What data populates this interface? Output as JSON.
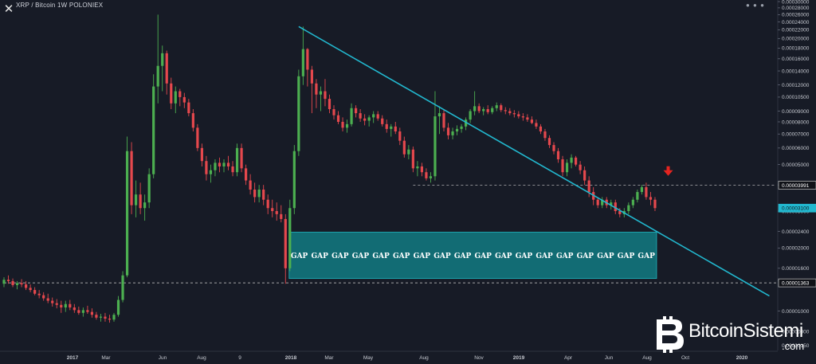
{
  "header": {
    "close_icon": "close-icon",
    "title": "XRP / Bitcoin   1W   POLONIEX",
    "dots": "● ● ●"
  },
  "watermark": {
    "brand": "BitcoinSistemi",
    "suffix": ".com",
    "logo_icon": "bitcoin-logo-icon"
  },
  "chart_data": {
    "type": "candlestick",
    "title": "XRP / Bitcoin 1W POLONIEX",
    "colors": {
      "background": "#171b26",
      "up": "#4caf50",
      "down": "#e5484d",
      "trendline": "#22b8cf",
      "gap_zone": "#127a82",
      "arrow": "#e52420",
      "dashed": "#d0d0d0"
    },
    "y_axis": {
      "scale": "log",
      "ticks": [
        "0.00030000",
        "0.00028000",
        "0.00026000",
        "0.00024000",
        "0.00022000",
        "0.00020000",
        "0.00018000",
        "0.00016000",
        "0.00014000",
        "0.00012000",
        "0.00010500",
        "0.00009000",
        "0.00008000",
        "0.00007000",
        "0.00006000",
        "0.00005000",
        "0.00004000",
        "0.00003000",
        "0.00002400",
        "0.00002000",
        "0.00001600",
        "0.00001400",
        "0.00001000",
        "0.00000800"
      ],
      "tick_values": [
        0.0003,
        0.00028,
        0.00026,
        0.00024,
        0.00022,
        0.0002,
        0.00018,
        0.00016,
        0.00014,
        0.00012,
        0.000105,
        9e-05,
        8e-05,
        7e-05,
        6e-05,
        5e-05,
        4e-05,
        3e-05,
        2.4e-05,
        2e-05,
        1.6e-05,
        1.4e-05,
        1e-05,
        8e-06
      ],
      "bottom_label": "0.00000150",
      "level_labels": [
        {
          "text": "0.00003991",
          "value": 3.991e-05,
          "style": "dark"
        },
        {
          "text": "0.00003100",
          "value": 3.1e-05,
          "style": "cyan"
        },
        {
          "text": "0.00001363",
          "value": 1.363e-05,
          "style": "dark"
        }
      ]
    },
    "x_axis": {
      "labels": [
        {
          "text": "2017",
          "bold": true
        },
        {
          "text": "Mar",
          "bold": false
        },
        {
          "text": "Jun",
          "bold": false
        },
        {
          "text": "Aug",
          "bold": false
        },
        {
          "text": "9",
          "bold": false
        },
        {
          "text": "2018",
          "bold": true
        },
        {
          "text": "Mar",
          "bold": false
        },
        {
          "text": "May",
          "bold": false
        },
        {
          "text": "Aug",
          "bold": false
        },
        {
          "text": "Nov",
          "bold": false
        },
        {
          "text": "2019",
          "bold": true
        },
        {
          "text": "Apr",
          "bold": false
        },
        {
          "text": "Jun",
          "bold": false
        },
        {
          "text": "Aug",
          "bold": false
        },
        {
          "text": "Oct",
          "bold": false
        },
        {
          "text": "2020",
          "bold": true
        }
      ]
    },
    "candles": [
      [
        1.35e-05,
        1.45e-05,
        1.3e-05,
        1.41e-05
      ],
      [
        1.41e-05,
        1.48e-05,
        1.35e-05,
        1.39e-05
      ],
      [
        1.39e-05,
        1.43e-05,
        1.3e-05,
        1.33e-05
      ],
      [
        1.33e-05,
        1.39e-05,
        1.27e-05,
        1.36e-05
      ],
      [
        1.36e-05,
        1.42e-05,
        1.3e-05,
        1.34e-05
      ],
      [
        1.34e-05,
        1.39e-05,
        1.26e-05,
        1.29e-05
      ],
      [
        1.29e-05,
        1.34e-05,
        1.23e-05,
        1.26e-05
      ],
      [
        1.26e-05,
        1.3e-05,
        1.19e-05,
        1.21e-05
      ],
      [
        1.21e-05,
        1.26e-05,
        1.15e-05,
        1.19e-05
      ],
      [
        1.19e-05,
        1.23e-05,
        1.12e-05,
        1.15e-05
      ],
      [
        1.15e-05,
        1.21e-05,
        1.09e-05,
        1.12e-05
      ],
      [
        1.12e-05,
        1.16e-05,
        1.05e-05,
        1.09e-05
      ],
      [
        1.09e-05,
        1.14e-05,
        1.03e-05,
        1.07e-05
      ],
      [
        1.07e-05,
        1.12e-05,
        9.8e-06,
        1.04e-05
      ],
      [
        1.04e-05,
        1.12e-05,
        9.9e-06,
        1.08e-05
      ],
      [
        1.08e-05,
        1.13e-05,
        1.01e-05,
        1.04e-05
      ],
      [
        1.04e-05,
        1.08e-05,
        9.8e-06,
        1.01e-05
      ],
      [
        1.01e-05,
        1.05e-05,
        9.6e-06,
        9.8e-06
      ],
      [
        9.8e-06,
        1.04e-05,
        9.4e-06,
        1.01e-05
      ],
      [
        1.01e-05,
        1.06e-05,
        9.7e-06,
        9.9e-06
      ],
      [
        9.9e-06,
        1.03e-05,
        9.3e-06,
        9.6e-06
      ],
      [
        9.6e-06,
        9.9e-06,
        9.1e-06,
        9.3e-06
      ],
      [
        9.3e-06,
        9.7e-06,
        8.9e-06,
        9.4e-06
      ],
      [
        9.4e-06,
        9.8e-06,
        8.9e-06,
        9.2e-06
      ],
      [
        9.2e-06,
        9.6e-06,
        8.8e-06,
        9.1e-06
      ],
      [
        9.1e-06,
        9.8e-06,
        8.9e-06,
        9.6e-06
      ],
      [
        9.6e-06,
        1.18e-05,
        9.4e-06,
        1.13e-05
      ],
      [
        1.13e-05,
        1.55e-05,
        1.1e-05,
        1.48e-05
      ],
      [
        1.48e-05,
        6.8e-05,
        1.45e-05,
        5.8e-05
      ],
      [
        5.8e-05,
        6.4e-05,
        2.9e-05,
        3.2e-05
      ],
      [
        3.2e-05,
        4.2e-05,
        2.8e-05,
        3.6e-05
      ],
      [
        3.6e-05,
        4.1e-05,
        2.9e-05,
        3.1e-05
      ],
      [
        3.1e-05,
        3.6e-05,
        2.7e-05,
        3.3e-05
      ],
      [
        3.3e-05,
        4.8e-05,
        3.1e-05,
        4.5e-05
      ],
      [
        4.5e-05,
        0.000135,
        4.3e-05,
        0.000118
      ],
      [
        0.000118,
        0.00026,
        9.8e-05,
        0.000148
      ],
      [
        0.000148,
        0.000185,
        0.000112,
        0.00017
      ],
      [
        0.00017,
        0.000175,
        0.000108,
        0.000122
      ],
      [
        0.000122,
        0.00013,
        9.2e-05,
        9.8e-05
      ],
      [
        9.8e-05,
        0.000118,
        8.8e-05,
        0.000112
      ],
      [
        0.000112,
        0.000115,
        9.5e-05,
        0.000105
      ],
      [
        0.000105,
        0.00011,
        9.3e-05,
        9.9e-05
      ],
      [
        9.9e-05,
        0.000103,
        8.5e-05,
        8.8e-05
      ],
      [
        8.8e-05,
        9.2e-05,
        7.2e-05,
        7.5e-05
      ],
      [
        7.5e-05,
        7.8e-05,
        5.8e-05,
        6e-05
      ],
      [
        6e-05,
        6.3e-05,
        4.9e-05,
        5.2e-05
      ],
      [
        5.2e-05,
        5.5e-05,
        4.2e-05,
        4.5e-05
      ],
      [
        4.5e-05,
        5e-05,
        4.1e-05,
        4.7e-05
      ],
      [
        4.7e-05,
        5.3e-05,
        4.4e-05,
        5.1e-05
      ],
      [
        5.1e-05,
        5.4e-05,
        4.6e-05,
        4.9e-05
      ],
      [
        4.9e-05,
        5.3e-05,
        4.6e-05,
        5.1e-05
      ],
      [
        5.1e-05,
        5.5e-05,
        4.7e-05,
        4.9e-05
      ],
      [
        4.9e-05,
        5.2e-05,
        4.4e-05,
        4.6e-05
      ],
      [
        4.6e-05,
        6.3e-05,
        4.4e-05,
        6e-05
      ],
      [
        6e-05,
        6.3e-05,
        4.6e-05,
        4.8e-05
      ],
      [
        4.8e-05,
        5e-05,
        4e-05,
        4.2e-05
      ],
      [
        4.2e-05,
        4.5e-05,
        3.6e-05,
        3.8e-05
      ],
      [
        3.8e-05,
        4.1e-05,
        3.3e-05,
        3.5e-05
      ],
      [
        3.5e-05,
        4e-05,
        3.3e-05,
        3.8e-05
      ],
      [
        3.8e-05,
        4e-05,
        3.2e-05,
        3.4e-05
      ],
      [
        3.4e-05,
        3.6e-05,
        2.9e-05,
        3.1e-05
      ],
      [
        3.1e-05,
        3.4e-05,
        2.8e-05,
        3e-05
      ],
      [
        3e-05,
        3.3e-05,
        2.7e-05,
        2.9e-05
      ],
      [
        2.9e-05,
        3.2e-05,
        2.65e-05,
        2.75e-05
      ],
      [
        2.75e-05,
        2.9e-05,
        1.35e-05,
        1.6e-05
      ],
      [
        1.6e-05,
        3.4e-05,
        1.55e-05,
        3.1e-05
      ],
      [
        3.1e-05,
        6.2e-05,
        2.9e-05,
        5.8e-05
      ],
      [
        5.8e-05,
        0.000142,
        5.5e-05,
        0.000132
      ],
      [
        0.000132,
        0.000228,
        0.00012,
        0.000178
      ],
      [
        0.000178,
        0.00018,
        0.000118,
        0.000142
      ],
      [
        0.000142,
        0.000148,
        8.8e-05,
        0.000122
      ],
      [
        0.000122,
        0.000128,
        9.3e-05,
        0.000108
      ],
      [
        0.000108,
        0.000118,
        9e-05,
        0.000112
      ],
      [
        0.000112,
        0.000128,
        9.5e-05,
        0.000103
      ],
      [
        0.000103,
        0.000108,
        8.8e-05,
        9.2e-05
      ],
      [
        9.2e-05,
        9.6e-05,
        8.2e-05,
        8.6e-05
      ],
      [
        8.6e-05,
        9e-05,
        7.8e-05,
        8e-05
      ],
      [
        8e-05,
        8.4e-05,
        7.2e-05,
        7.5e-05
      ],
      [
        7.5e-05,
        8.2e-05,
        7.1e-05,
        7.8e-05
      ],
      [
        7.8e-05,
        9.8e-05,
        7.6e-05,
        9.3e-05
      ],
      [
        9.3e-05,
        9.6e-05,
        8.4e-05,
        8.8e-05
      ],
      [
        8.8e-05,
        9.2e-05,
        8e-05,
        8.3e-05
      ],
      [
        8.3e-05,
        8.7e-05,
        7.7e-05,
        8.1e-05
      ],
      [
        8.1e-05,
        8.6e-05,
        7.6e-05,
        8.4e-05
      ],
      [
        8.4e-05,
        9e-05,
        7.9e-05,
        8.7e-05
      ],
      [
        8.7e-05,
        9e-05,
        8.1e-05,
        8.3e-05
      ],
      [
        8.3e-05,
        8.6e-05,
        7.6e-05,
        7.8e-05
      ],
      [
        7.8e-05,
        8.2e-05,
        7.1e-05,
        7.4e-05
      ],
      [
        7.4e-05,
        7.8e-05,
        6.8e-05,
        7.6e-05
      ],
      [
        7.6e-05,
        8e-05,
        7e-05,
        7.2e-05
      ],
      [
        7.2e-05,
        7.5e-05,
        6.2e-05,
        6.5e-05
      ],
      [
        6.5e-05,
        6.8e-05,
        5.4e-05,
        5.6e-05
      ],
      [
        5.6e-05,
        6.2e-05,
        5.3e-05,
        5.9e-05
      ],
      [
        5.9e-05,
        6.1e-05,
        4.6e-05,
        4.8e-05
      ],
      [
        4.8e-05,
        5.2e-05,
        4.4e-05,
        4.9e-05
      ],
      [
        4.9e-05,
        5.1e-05,
        4.4e-05,
        4.6e-05
      ],
      [
        4.6e-05,
        4.8e-05,
        4.2e-05,
        4.3e-05
      ],
      [
        4.3e-05,
        4.6e-05,
        4.1e-05,
        4.4e-05
      ],
      [
        4.4e-05,
        0.000112,
        4.2e-05,
        8.5e-05
      ],
      [
        8.5e-05,
        9.5e-05,
        7e-05,
        8.8e-05
      ],
      [
        8.8e-05,
        9.2e-05,
        7.2e-05,
        7.5e-05
      ],
      [
        7.5e-05,
        7.9e-05,
        6.6e-05,
        6.9e-05
      ],
      [
        6.9e-05,
        7.5e-05,
        6.6e-05,
        7.2e-05
      ],
      [
        7.2e-05,
        7.7e-05,
        6.9e-05,
        7.4e-05
      ],
      [
        7.4e-05,
        7.8e-05,
        7.1e-05,
        7.6e-05
      ],
      [
        7.6e-05,
        8.4e-05,
        7.3e-05,
        8.2e-05
      ],
      [
        8.2e-05,
        9.2e-05,
        7.9e-05,
        9e-05
      ],
      [
        9e-05,
        0.000112,
        8.6e-05,
        9.5e-05
      ],
      [
        9.5e-05,
        9.8e-05,
        8.8e-05,
        9e-05
      ],
      [
        9e-05,
        9.4e-05,
        8.6e-05,
        9.2e-05
      ],
      [
        9.2e-05,
        9.6e-05,
        8.7e-05,
        8.9e-05
      ],
      [
        8.9e-05,
        9.5e-05,
        8.7e-05,
        9.3e-05
      ],
      [
        9.3e-05,
        9.9e-05,
        9e-05,
        9.6e-05
      ],
      [
        9.6e-05,
        9.8e-05,
        8.9e-05,
        9.1e-05
      ],
      [
        9.1e-05,
        9.4e-05,
        8.7e-05,
        9e-05
      ],
      [
        9e-05,
        9.3e-05,
        8.6e-05,
        8.8e-05
      ],
      [
        8.8e-05,
        9.1e-05,
        8.4e-05,
        8.7e-05
      ],
      [
        8.7e-05,
        9e-05,
        8.3e-05,
        8.5e-05
      ],
      [
        8.5e-05,
        8.8e-05,
        8.1e-05,
        8.4e-05
      ],
      [
        8.4e-05,
        8.7e-05,
        8e-05,
        8.2e-05
      ],
      [
        8.2e-05,
        8.5e-05,
        7.8e-05,
        7.9e-05
      ],
      [
        7.9e-05,
        8.2e-05,
        7.4e-05,
        7.6e-05
      ],
      [
        7.6e-05,
        7.8e-05,
        7e-05,
        7.2e-05
      ],
      [
        7.2e-05,
        7.4e-05,
        6.5e-05,
        6.7e-05
      ],
      [
        6.7e-05,
        6.9e-05,
        6e-05,
        6.2e-05
      ],
      [
        6.2e-05,
        6.4e-05,
        5.6e-05,
        5.8e-05
      ],
      [
        5.8e-05,
        6e-05,
        5.1e-05,
        5.3e-05
      ],
      [
        5.3e-05,
        5.5e-05,
        4.4e-05,
        4.6e-05
      ],
      [
        4.6e-05,
        5.3e-05,
        4.4e-05,
        5.1e-05
      ],
      [
        5.1e-05,
        5.6e-05,
        4.8e-05,
        5.4e-05
      ],
      [
        5.4e-05,
        5.5e-05,
        4.9e-05,
        5e-05
      ],
      [
        5e-05,
        5.2e-05,
        4.5e-05,
        4.7e-05
      ],
      [
        4.7e-05,
        4.9e-05,
        4e-05,
        4.2e-05
      ],
      [
        4.2e-05,
        4.4e-05,
        3.5e-05,
        3.7e-05
      ],
      [
        3.7e-05,
        3.9e-05,
        3.2e-05,
        3.4e-05
      ],
      [
        3.4e-05,
        3.5e-05,
        3.1e-05,
        3.2e-05
      ],
      [
        3.2e-05,
        3.5e-05,
        3.1e-05,
        3.4e-05
      ],
      [
        3.4e-05,
        3.5e-05,
        3.1e-05,
        3.2e-05
      ],
      [
        3.2e-05,
        3.4e-05,
        3.05e-05,
        3.3e-05
      ],
      [
        3.3e-05,
        3.4e-05,
        2.9e-05,
        3e-05
      ],
      [
        3e-05,
        3.1e-05,
        2.8e-05,
        2.9e-05
      ],
      [
        2.9e-05,
        3.1e-05,
        2.8e-05,
        3e-05
      ],
      [
        3e-05,
        3.3e-05,
        2.9e-05,
        3.2e-05
      ],
      [
        3.2e-05,
        3.5e-05,
        3.1e-05,
        3.4e-05
      ],
      [
        3.4e-05,
        3.8e-05,
        3.3e-05,
        3.7e-05
      ],
      [
        3.7e-05,
        4e-05,
        3.6e-05,
        3.9e-05
      ],
      [
        3.9e-05,
        4.1e-05,
        3.4e-05,
        3.5e-05
      ],
      [
        3.5e-05,
        3.7e-05,
        3.2e-05,
        3.4e-05
      ],
      [
        3.4e-05,
        3.5e-05,
        3e-05,
        3.1e-05
      ]
    ],
    "trendline": {
      "from_candle": 67,
      "from_value": 0.000228,
      "to_candle": 174,
      "to_value": 1.18e-05
    },
    "horizontal_levels": [
      {
        "value": 3.991e-05,
        "from_candle": 93,
        "style": "dashed"
      },
      {
        "value": 1.363e-05,
        "from_candle": 0,
        "style": "dashed"
      }
    ],
    "gap_zone": {
      "from_candle": 65,
      "to_candle": 148,
      "top": 2.38e-05,
      "bottom": 1.43e-05,
      "label": "GAP",
      "label_count": 18
    },
    "arrow": {
      "candle": 151,
      "value": 4.5e-05,
      "direction": "down"
    }
  }
}
